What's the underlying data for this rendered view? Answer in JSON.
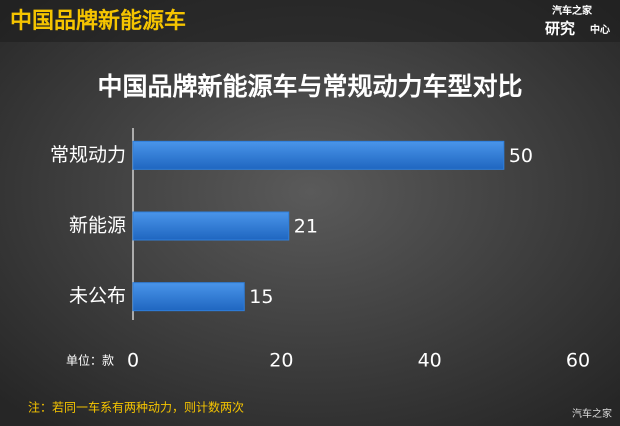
{
  "chart_data": {
    "type": "hbar",
    "header": "中国品牌新能源车",
    "logo_top": "汽车之家",
    "logo_main": "研究",
    "logo_sub": "中心",
    "title": "中国品牌新能源车与常规动力车型对比",
    "categories": [
      "常规动力",
      "新能源",
      "未公布"
    ],
    "values": [
      50,
      21,
      15
    ],
    "color": "#2f7fdb",
    "xlim": [
      0,
      60
    ],
    "xticks": [
      0,
      20,
      40,
      60
    ],
    "unit_label": "单位：款",
    "note": "注：若同一车系有两种动力，则计数两次",
    "watermark": "汽车之家"
  }
}
